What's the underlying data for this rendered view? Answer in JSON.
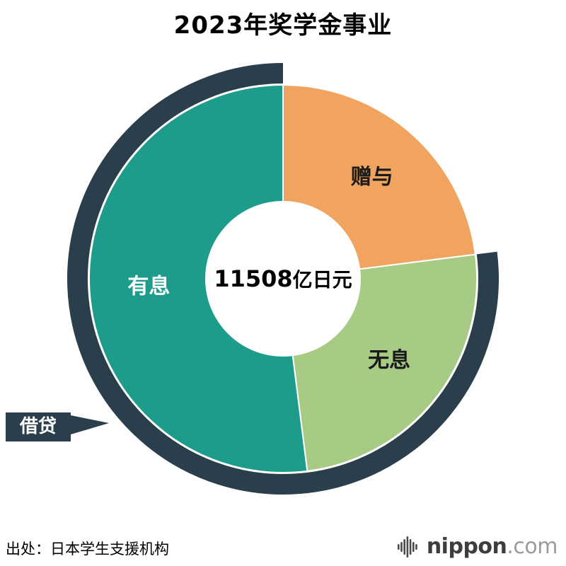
{
  "page": {
    "background": "#ffffff"
  },
  "title": "2023年奖学金事业",
  "source": "出处：日本学生支援机构",
  "logo": {
    "icon": "soundwave-bars-icon",
    "text_main": "nippon",
    "text_suffix": ".com",
    "text_color": "#3d3d3d",
    "suffix_color": "#9b9b9b"
  },
  "chart_data": {
    "type": "pie",
    "style": "donut",
    "title": "2023年奖学金事业",
    "total": 11508,
    "unit": "亿日元",
    "center_label": {
      "value": "11508",
      "unit": "亿日元"
    },
    "legend_position": "inside",
    "segments": [
      {
        "label": "赠与",
        "value": 2647,
        "percent": 23,
        "color": "#F0A45F",
        "label_color": "#1a1a1a"
      },
      {
        "label": "无息",
        "value": 2877,
        "percent": 25,
        "color": "#A7CB85",
        "label_color": "#1a1a1a"
      },
      {
        "label": "有息",
        "value": 5984,
        "percent": 52,
        "color": "#1D9C8C",
        "label_color": "#ffffff"
      }
    ],
    "outer_arc": {
      "label": "借贷",
      "covers": [
        "无息",
        "有息"
      ],
      "color": "#2B3E4C"
    }
  }
}
